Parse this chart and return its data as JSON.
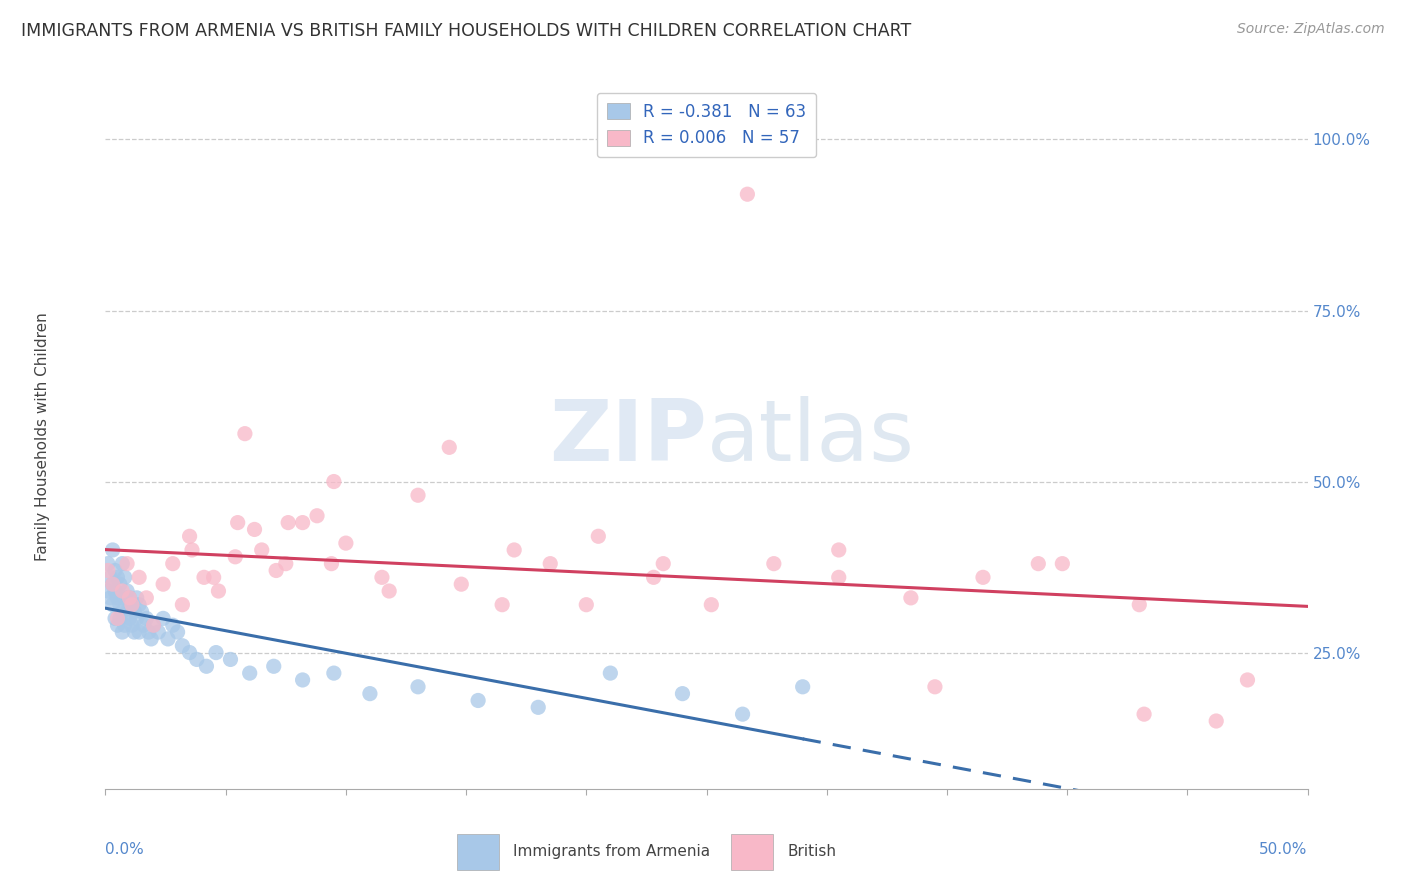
{
  "title": "IMMIGRANTS FROM ARMENIA VS BRITISH FAMILY HOUSEHOLDS WITH CHILDREN CORRELATION CHART",
  "source_text": "Source: ZipAtlas.com",
  "ylabel": "Family Households with Children",
  "yticks_right": [
    "100.0%",
    "75.0%",
    "50.0%",
    "25.0%"
  ],
  "yticks_right_vals": [
    1.0,
    0.75,
    0.5,
    0.25
  ],
  "xlim": [
    0.0,
    0.5
  ],
  "ylim": [
    0.05,
    1.08
  ],
  "armenia_R": -0.381,
  "armenia_N": 63,
  "british_R": 0.006,
  "british_N": 57,
  "armenia_color": "#a8c8e8",
  "british_color": "#f8b8c8",
  "armenia_line_color": "#3a6eaa",
  "british_line_color": "#d04060",
  "watermark_zip": "ZIP",
  "watermark_atlas": "atlas",
  "armenia_scatter_x": [
    0.001,
    0.001,
    0.002,
    0.002,
    0.003,
    0.003,
    0.003,
    0.004,
    0.004,
    0.004,
    0.005,
    0.005,
    0.005,
    0.006,
    0.006,
    0.006,
    0.007,
    0.007,
    0.007,
    0.008,
    0.008,
    0.008,
    0.009,
    0.009,
    0.01,
    0.01,
    0.011,
    0.011,
    0.012,
    0.012,
    0.013,
    0.013,
    0.014,
    0.014,
    0.015,
    0.016,
    0.017,
    0.018,
    0.019,
    0.02,
    0.022,
    0.024,
    0.026,
    0.028,
    0.03,
    0.032,
    0.035,
    0.038,
    0.042,
    0.046,
    0.052,
    0.06,
    0.07,
    0.082,
    0.095,
    0.11,
    0.13,
    0.155,
    0.18,
    0.21,
    0.24,
    0.265,
    0.29
  ],
  "armenia_scatter_y": [
    0.34,
    0.38,
    0.33,
    0.36,
    0.32,
    0.35,
    0.4,
    0.3,
    0.34,
    0.37,
    0.29,
    0.33,
    0.36,
    0.3,
    0.32,
    0.35,
    0.28,
    0.31,
    0.38,
    0.29,
    0.33,
    0.36,
    0.31,
    0.34,
    0.3,
    0.33,
    0.29,
    0.32,
    0.28,
    0.31,
    0.3,
    0.33,
    0.28,
    0.32,
    0.31,
    0.29,
    0.3,
    0.28,
    0.27,
    0.29,
    0.28,
    0.3,
    0.27,
    0.29,
    0.28,
    0.26,
    0.25,
    0.24,
    0.23,
    0.25,
    0.24,
    0.22,
    0.23,
    0.21,
    0.22,
    0.19,
    0.2,
    0.18,
    0.17,
    0.22,
    0.19,
    0.16,
    0.2
  ],
  "british_scatter_x": [
    0.001,
    0.003,
    0.005,
    0.007,
    0.009,
    0.011,
    0.014,
    0.017,
    0.02,
    0.024,
    0.028,
    0.032,
    0.036,
    0.041,
    0.047,
    0.054,
    0.062,
    0.071,
    0.082,
    0.094,
    0.035,
    0.045,
    0.055,
    0.065,
    0.075,
    0.088,
    0.1,
    0.115,
    0.13,
    0.148,
    0.165,
    0.185,
    0.205,
    0.228,
    0.252,
    0.278,
    0.305,
    0.335,
    0.365,
    0.398,
    0.43,
    0.462,
    0.058,
    0.076,
    0.095,
    0.118,
    0.143,
    0.17,
    0.2,
    0.232,
    0.267,
    0.305,
    0.345,
    0.388,
    0.432,
    0.475,
    0.01
  ],
  "british_scatter_y": [
    0.37,
    0.35,
    0.3,
    0.34,
    0.38,
    0.32,
    0.36,
    0.33,
    0.29,
    0.35,
    0.38,
    0.32,
    0.4,
    0.36,
    0.34,
    0.39,
    0.43,
    0.37,
    0.44,
    0.38,
    0.42,
    0.36,
    0.44,
    0.4,
    0.38,
    0.45,
    0.41,
    0.36,
    0.48,
    0.35,
    0.32,
    0.38,
    0.42,
    0.36,
    0.32,
    0.38,
    0.4,
    0.33,
    0.36,
    0.38,
    0.32,
    0.15,
    0.57,
    0.44,
    0.5,
    0.34,
    0.55,
    0.4,
    0.32,
    0.38,
    0.92,
    0.36,
    0.2,
    0.38,
    0.16,
    0.21,
    0.33
  ],
  "grid_color": "#cccccc",
  "grid_linestyle": "--"
}
